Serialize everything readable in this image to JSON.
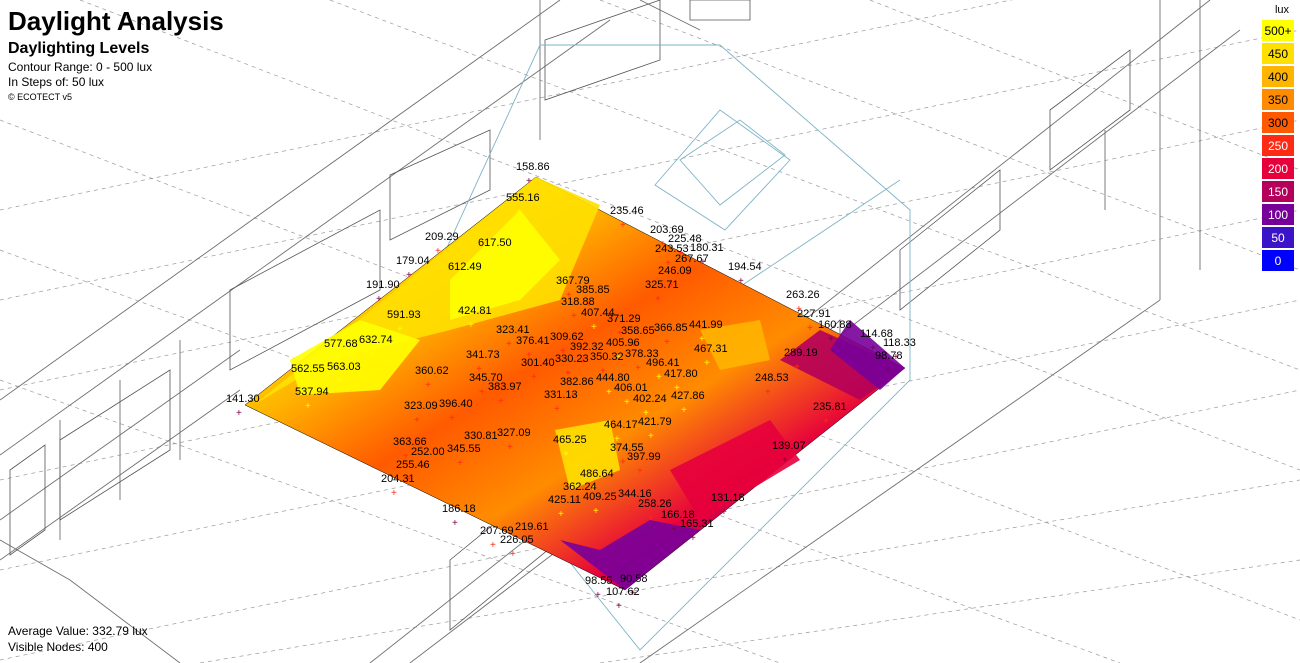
{
  "header": {
    "title": "Daylight Analysis",
    "subtitle": "Daylighting Levels",
    "contour_range": "Contour Range: 0 - 500 lux",
    "steps": "In Steps of: 50 lux",
    "credit": "© ECOTECT v5"
  },
  "footer": {
    "average": "Average Value: 332.79 lux",
    "visible_nodes": "Visible Nodes: 400"
  },
  "legend": {
    "unit": "lux",
    "entries": [
      {
        "label": "500+",
        "color": "#ffff00",
        "text_color": "#000000"
      },
      {
        "label": "450",
        "color": "#ffe000",
        "text_color": "#000000"
      },
      {
        "label": "400",
        "color": "#ffb400",
        "text_color": "#000000"
      },
      {
        "label": "350",
        "color": "#ff8c00",
        "text_color": "#000000"
      },
      {
        "label": "300",
        "color": "#ff5a00",
        "text_color": "#000000"
      },
      {
        "label": "250",
        "color": "#ff2a14",
        "text_color": "#ffffff"
      },
      {
        "label": "200",
        "color": "#e6003c",
        "text_color": "#ffffff"
      },
      {
        "label": "150",
        "color": "#b4005a",
        "text_color": "#ffffff"
      },
      {
        "label": "100",
        "color": "#78009a",
        "text_color": "#ffffff"
      },
      {
        "label": "50",
        "color": "#3c14c8",
        "text_color": "#ffffff"
      },
      {
        "label": "0",
        "color": "#0000ff",
        "text_color": "#ffffff"
      }
    ]
  },
  "node_values": [
    {
      "label": "158.86",
      "value": 158.86
    },
    {
      "label": "555.16",
      "value": 555.16
    },
    {
      "label": "235.46",
      "value": 235.46
    },
    {
      "label": "203.69",
      "value": 203.69
    },
    {
      "label": "225.48",
      "value": 225.48
    },
    {
      "label": "243.53",
      "value": 243.53
    },
    {
      "label": "180.31",
      "value": 180.31
    },
    {
      "label": "267.67",
      "value": 267.67
    },
    {
      "label": "209.29",
      "value": 209.29
    },
    {
      "label": "617.50",
      "value": 617.5
    },
    {
      "label": "179.04",
      "value": 179.04
    },
    {
      "label": "612.49",
      "value": 612.49
    },
    {
      "label": "246.09",
      "value": 246.09
    },
    {
      "label": "194.54",
      "value": 194.54
    },
    {
      "label": "367.79",
      "value": 367.79
    },
    {
      "label": "325.71",
      "value": 325.71
    },
    {
      "label": "191.90",
      "value": 191.9
    },
    {
      "label": "385.85",
      "value": 385.85
    },
    {
      "label": "263.26",
      "value": 263.26
    },
    {
      "label": "318.88",
      "value": 318.88
    },
    {
      "label": "424.81",
      "value": 424.81
    },
    {
      "label": "407.44",
      "value": 407.44
    },
    {
      "label": "591.93",
      "value": 591.93
    },
    {
      "label": "371.29",
      "value": 371.29
    },
    {
      "label": "227.91",
      "value": 227.91
    },
    {
      "label": "160.88",
      "value": 160.88
    },
    {
      "label": "358.65",
      "value": 358.65
    },
    {
      "label": "366.85",
      "value": 366.85
    },
    {
      "label": "441.99",
      "value": 441.99
    },
    {
      "label": "114.68",
      "value": 114.68
    },
    {
      "label": "323.41",
      "value": 323.41
    },
    {
      "label": "118.33",
      "value": 118.33
    },
    {
      "label": "309.62",
      "value": 309.62
    },
    {
      "label": "376.41",
      "value": 376.41
    },
    {
      "label": "392.32",
      "value": 392.32
    },
    {
      "label": "405.96",
      "value": 405.96
    },
    {
      "label": "467.31",
      "value": 467.31
    },
    {
      "label": "577.68",
      "value": 577.68
    },
    {
      "label": "632.74",
      "value": 632.74
    },
    {
      "label": "378.33",
      "value": 378.33
    },
    {
      "label": "341.73",
      "value": 341.73
    },
    {
      "label": "350.32",
      "value": 350.32
    },
    {
      "label": "289.19",
      "value": 289.19
    },
    {
      "label": "98.78",
      "value": 98.78
    },
    {
      "label": "330.23",
      "value": 330.23
    },
    {
      "label": "301.40",
      "value": 301.4
    },
    {
      "label": "496.41",
      "value": 496.41
    },
    {
      "label": "562.55",
      "value": 562.55
    },
    {
      "label": "563.03",
      "value": 563.03
    },
    {
      "label": "360.62",
      "value": 360.62
    },
    {
      "label": "417.80",
      "value": 417.8
    },
    {
      "label": "248.53",
      "value": 248.53
    },
    {
      "label": "345.70",
      "value": 345.7
    },
    {
      "label": "382.86",
      "value": 382.86
    },
    {
      "label": "444.80",
      "value": 444.8
    },
    {
      "label": "383.97",
      "value": 383.97
    },
    {
      "label": "406.01",
      "value": 406.01
    },
    {
      "label": "537.94",
      "value": 537.94
    },
    {
      "label": "331.13",
      "value": 331.13
    },
    {
      "label": "427.86",
      "value": 427.86
    },
    {
      "label": "141.30",
      "value": 141.3
    },
    {
      "label": "402.24",
      "value": 402.24
    },
    {
      "label": "396.40",
      "value": 396.4
    },
    {
      "label": "235.81",
      "value": 235.81
    },
    {
      "label": "323.09",
      "value": 323.09
    },
    {
      "label": "421.79",
      "value": 421.79
    },
    {
      "label": "464.17",
      "value": 464.17
    },
    {
      "label": "330.81",
      "value": 330.81
    },
    {
      "label": "327.09",
      "value": 327.09
    },
    {
      "label": "363.66",
      "value": 363.66
    },
    {
      "label": "465.25",
      "value": 465.25
    },
    {
      "label": "374.55",
      "value": 374.55
    },
    {
      "label": "139.07",
      "value": 139.07
    },
    {
      "label": "345.55",
      "value": 345.55
    },
    {
      "label": "252.00",
      "value": 252.0
    },
    {
      "label": "397.99",
      "value": 397.99
    },
    {
      "label": "255.46",
      "value": 255.46
    },
    {
      "label": "486.64",
      "value": 486.64
    },
    {
      "label": "204.31",
      "value": 204.31
    },
    {
      "label": "362.24",
      "value": 362.24
    },
    {
      "label": "344.16",
      "value": 344.16
    },
    {
      "label": "131.18",
      "value": 131.18
    },
    {
      "label": "425.11",
      "value": 425.11
    },
    {
      "label": "409.25",
      "value": 409.25
    },
    {
      "label": "186.18",
      "value": 186.18
    },
    {
      "label": "258.26",
      "value": 258.26
    },
    {
      "label": "166.18",
      "value": 166.18
    },
    {
      "label": "165.31",
      "value": 165.31
    },
    {
      "label": "207.69",
      "value": 207.69
    },
    {
      "label": "219.61",
      "value": 219.61
    },
    {
      "label": "226.05",
      "value": 226.05
    },
    {
      "label": "98.55",
      "value": 98.55
    },
    {
      "label": "90.58",
      "value": 90.58
    },
    {
      "label": "107.62",
      "value": 107.62
    }
  ]
}
